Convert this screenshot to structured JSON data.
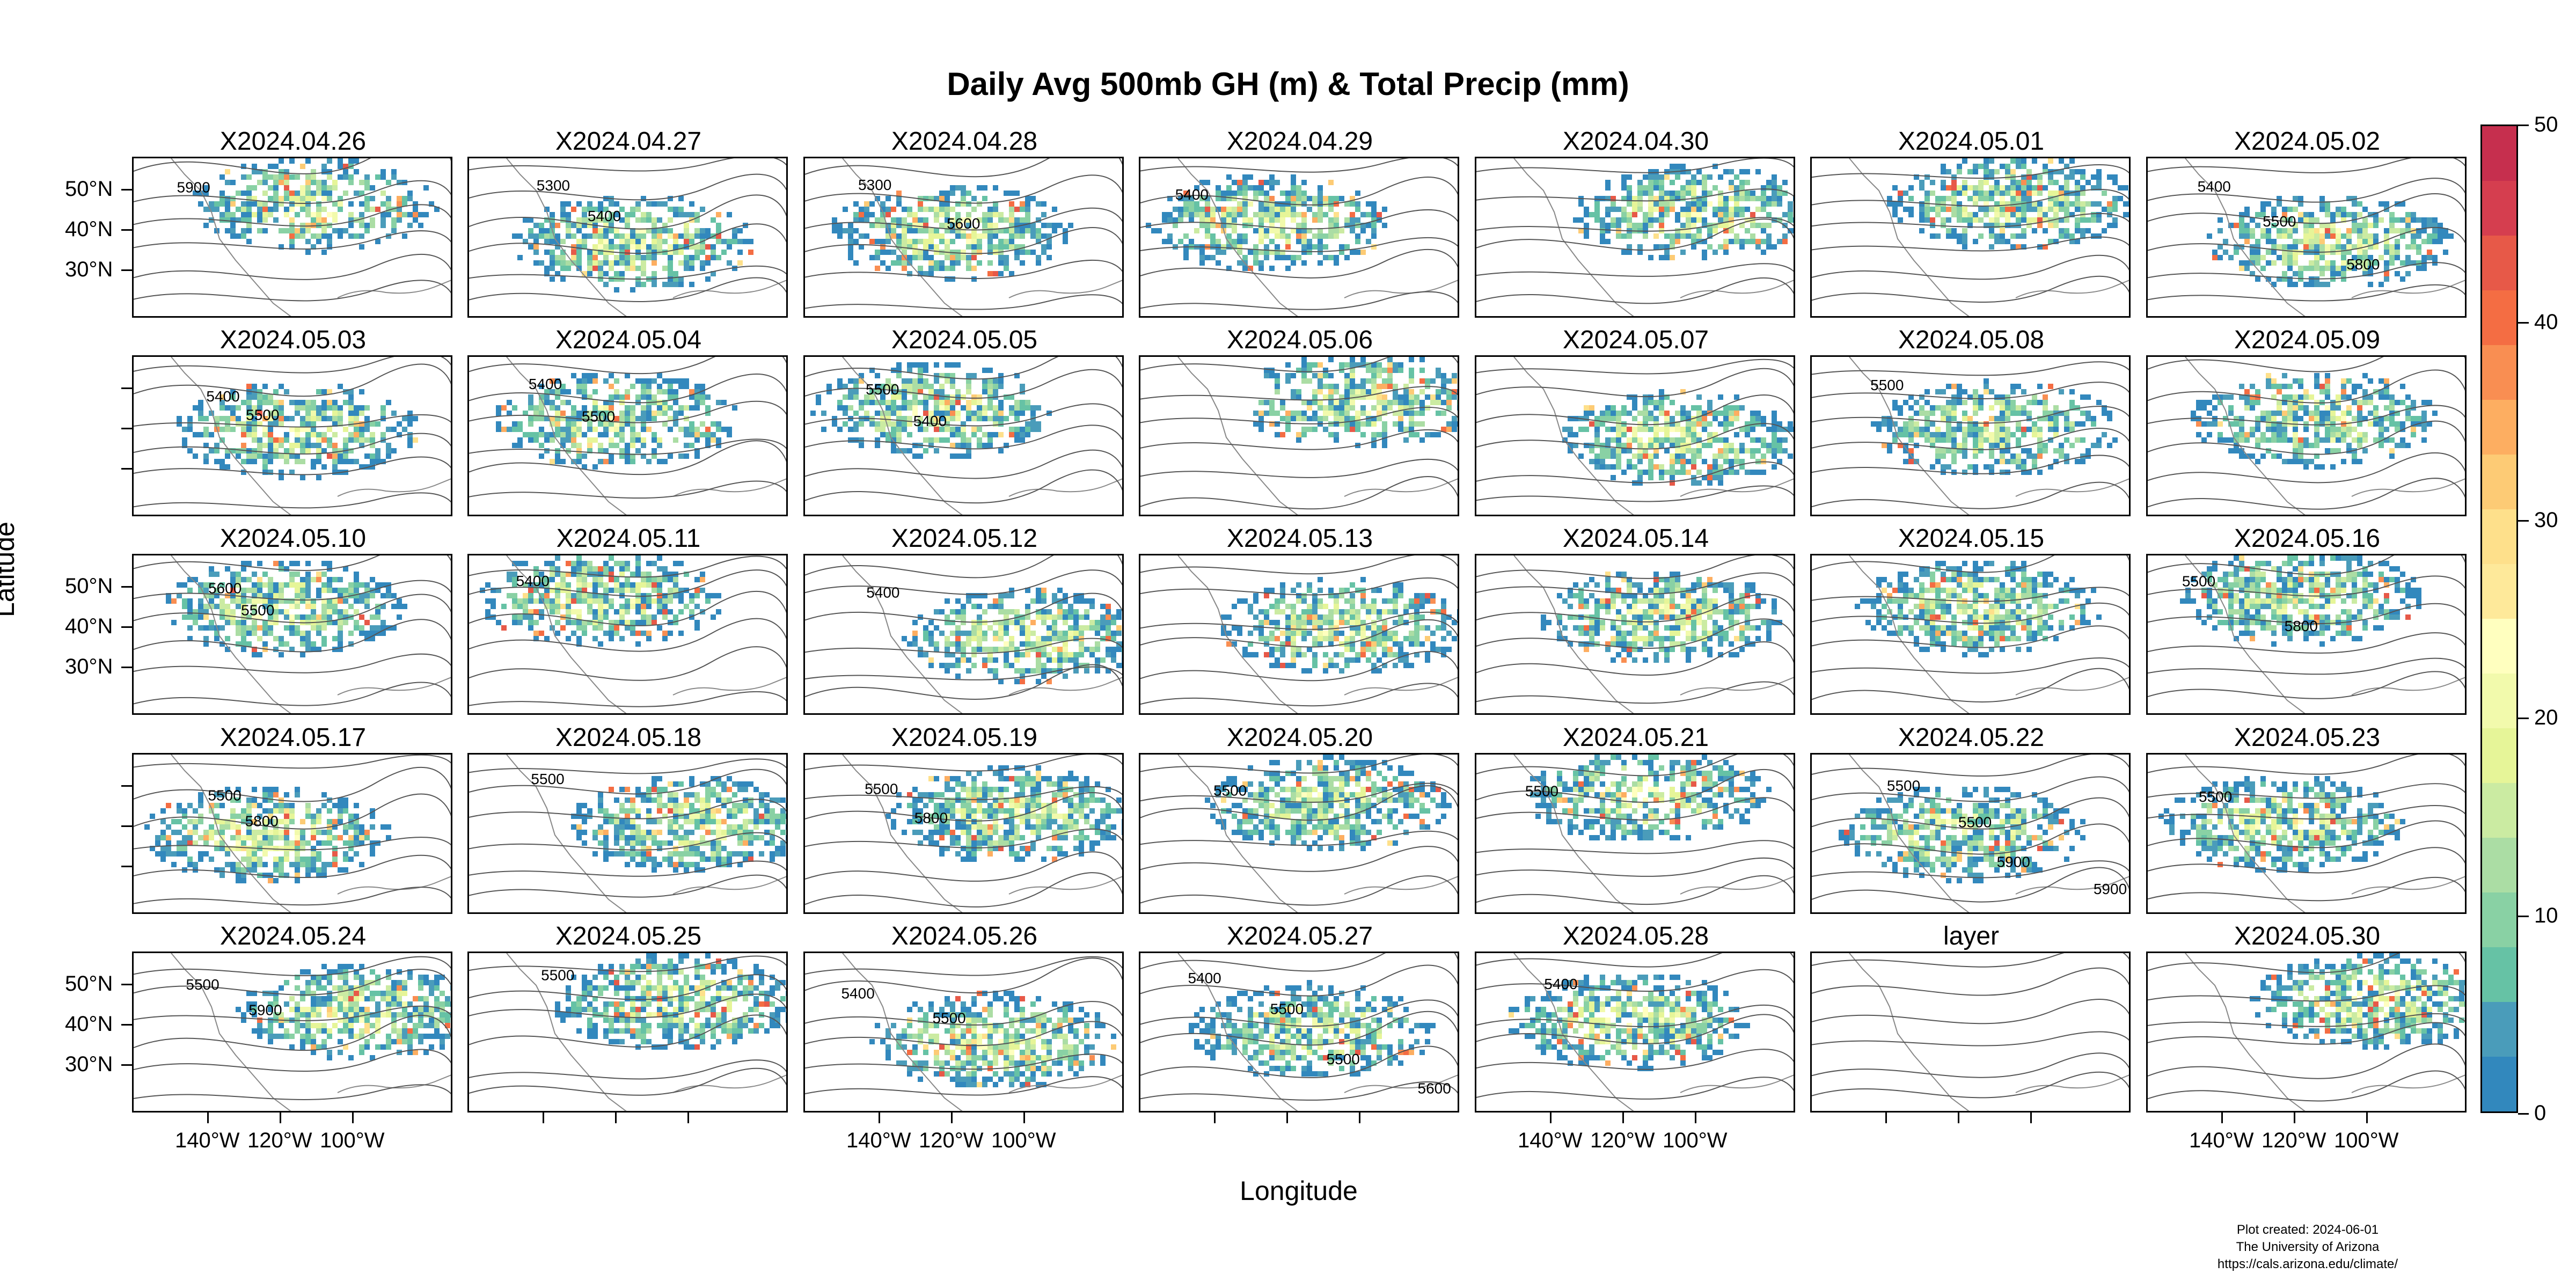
{
  "title": "Daily Avg 500mb GH (m) & Total Precip (mm)",
  "x_axis_title": "Longitude",
  "y_axis_title": "Latitude",
  "lat_tick_labels": [
    "50°N",
    "40°N",
    "30°N"
  ],
  "lon_tick_labels": [
    "140°W",
    "120°W",
    "100°W"
  ],
  "colorbar": {
    "tick_labels": [
      "50",
      "40",
      "30",
      "20",
      "10",
      "0"
    ],
    "range": [
      0,
      50
    ],
    "colors": [
      "#3288bd",
      "#4a9cba",
      "#66c2a5",
      "#89d1a4",
      "#abdda4",
      "#cbeba2",
      "#e6f598",
      "#f2faac",
      "#ffffbf",
      "#fee99a",
      "#fee08b",
      "#fdcb75",
      "#fdae61",
      "#f98e52",
      "#f46d43",
      "#e75948",
      "#d53e4f",
      "#c62f4e"
    ]
  },
  "panels": [
    {
      "title": "X2024.04.26",
      "contours": [
        "5900"
      ]
    },
    {
      "title": "X2024.04.27",
      "contours": [
        "5300",
        "5400"
      ]
    },
    {
      "title": "X2024.04.28",
      "contours": [
        "5300",
        "5600"
      ]
    },
    {
      "title": "X2024.04.29",
      "contours": [
        "5400"
      ]
    },
    {
      "title": "X2024.04.30",
      "contours": []
    },
    {
      "title": "X2024.05.01",
      "contours": []
    },
    {
      "title": "X2024.05.02",
      "contours": [
        "5400",
        "5500",
        "5800"
      ]
    },
    {
      "title": "X2024.05.03",
      "contours": [
        "5400",
        "5500"
      ]
    },
    {
      "title": "X2024.05.04",
      "contours": [
        "5400",
        "5500"
      ]
    },
    {
      "title": "X2024.05.05",
      "contours": [
        "5500",
        "5400"
      ]
    },
    {
      "title": "X2024.05.06",
      "contours": []
    },
    {
      "title": "X2024.05.07",
      "contours": []
    },
    {
      "title": "X2024.05.08",
      "contours": [
        "5500"
      ]
    },
    {
      "title": "X2024.05.09",
      "contours": []
    },
    {
      "title": "X2024.05.10",
      "contours": [
        "5600",
        "5500"
      ]
    },
    {
      "title": "X2024.05.11",
      "contours": [
        "5400"
      ]
    },
    {
      "title": "X2024.05.12",
      "contours": [
        "5400"
      ]
    },
    {
      "title": "X2024.05.13",
      "contours": []
    },
    {
      "title": "X2024.05.14",
      "contours": []
    },
    {
      "title": "X2024.05.15",
      "contours": []
    },
    {
      "title": "X2024.05.16",
      "contours": [
        "5500",
        "5800"
      ]
    },
    {
      "title": "X2024.05.17",
      "contours": [
        "5500",
        "5800"
      ]
    },
    {
      "title": "X2024.05.18",
      "contours": [
        "5500"
      ]
    },
    {
      "title": "X2024.05.19",
      "contours": [
        "5500",
        "5800"
      ]
    },
    {
      "title": "X2024.05.20",
      "contours": [
        "5500"
      ]
    },
    {
      "title": "X2024.05.21",
      "contours": [
        "5500"
      ]
    },
    {
      "title": "X2024.05.22",
      "contours": [
        "5500",
        "5500",
        "5900",
        "5900"
      ]
    },
    {
      "title": "X2024.05.23",
      "contours": [
        "5500"
      ]
    },
    {
      "title": "X2024.05.24",
      "contours": [
        "5500",
        "5900"
      ]
    },
    {
      "title": "X2024.05.25",
      "contours": [
        "5500"
      ]
    },
    {
      "title": "X2024.05.26",
      "contours": [
        "5400",
        "5500"
      ]
    },
    {
      "title": "X2024.05.27",
      "contours": [
        "5400",
        "5500",
        "5500",
        "5600"
      ]
    },
    {
      "title": "X2024.05.28",
      "contours": [
        "5400"
      ]
    },
    {
      "title": "layer",
      "contours": []
    },
    {
      "title": "X2024.05.30",
      "contours": []
    }
  ],
  "credit": {
    "line1": "Plot created: 2024-06-01",
    "line2": "The University of Arizona",
    "line3": "https://cals.arizona.edu/climate/"
  }
}
